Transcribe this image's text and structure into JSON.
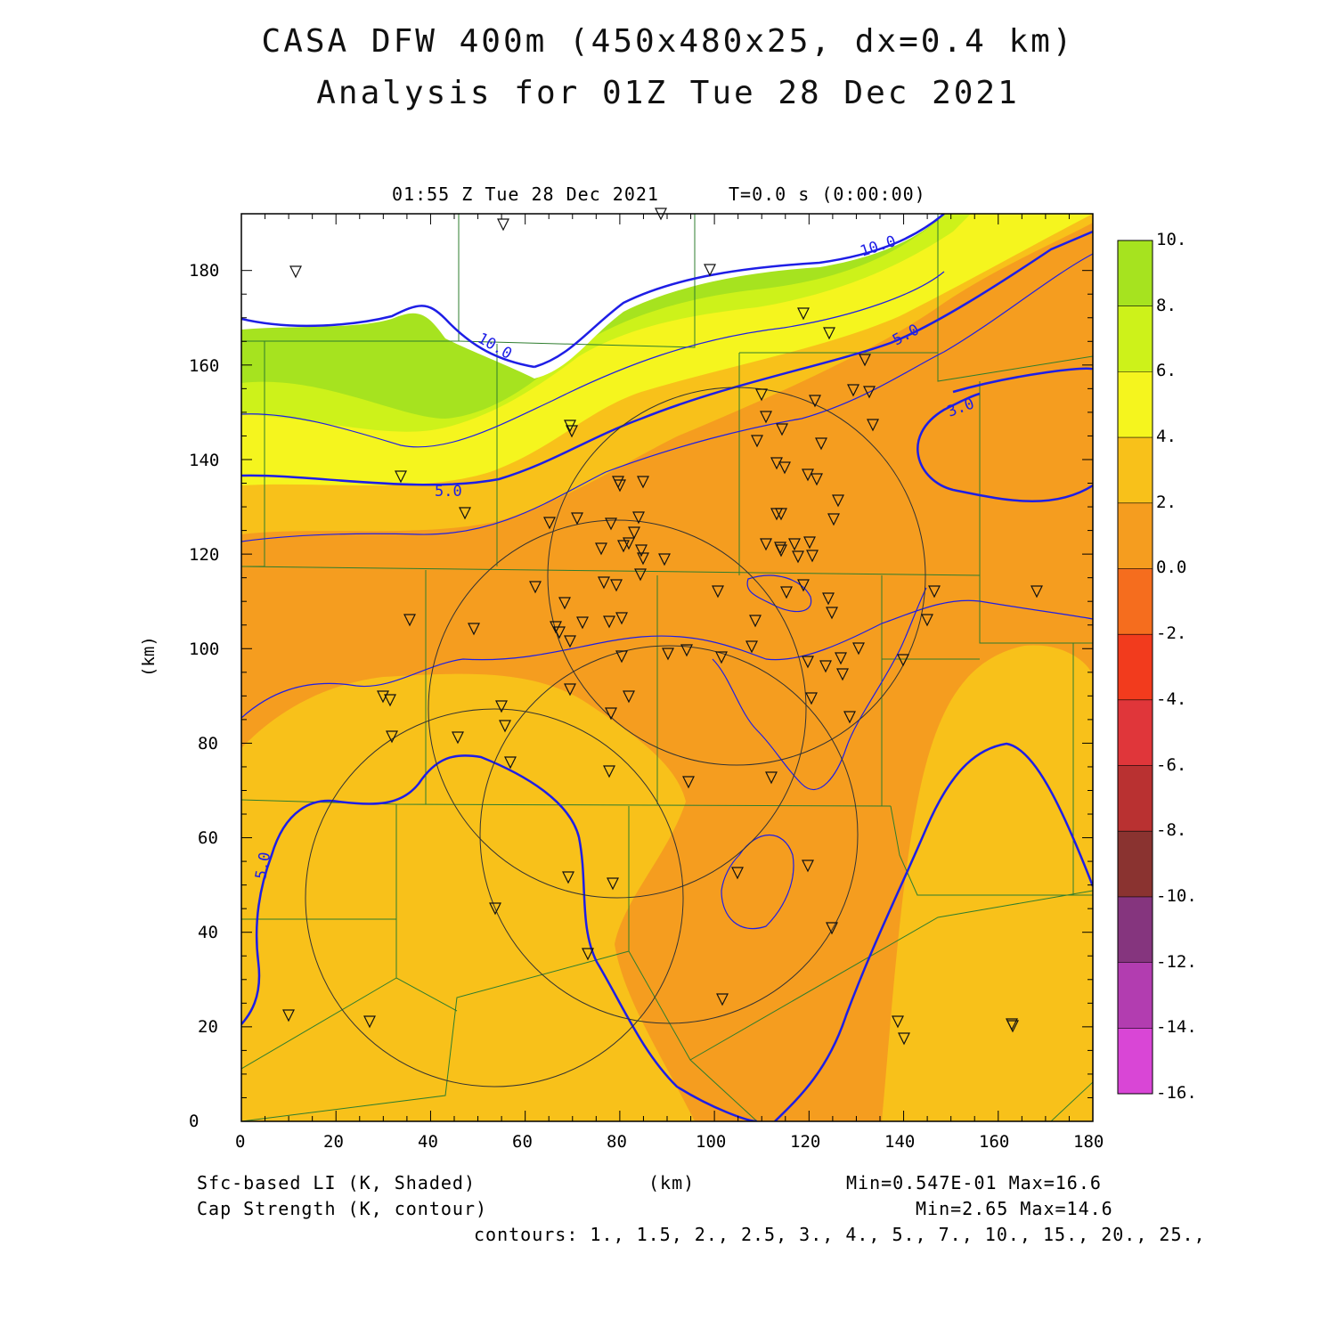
{
  "title_line1": "CASA DFW 400m (450x480x25, dx=0.4 km)",
  "title_line2": "Analysis for 01Z Tue 28 Dec 2021",
  "valid_time": "01:55 Z Tue 28 Dec 2021",
  "time_step": "T=0.0 s (0:00:00)",
  "x_axis": {
    "label": "(km)",
    "ticks": [
      "0",
      "20",
      "40",
      "60",
      "80",
      "100",
      "120",
      "140",
      "160",
      "180"
    ]
  },
  "y_axis": {
    "label": "(km)",
    "ticks": [
      "0",
      "20",
      "40",
      "60",
      "80",
      "100",
      "120",
      "140",
      "160",
      "180"
    ]
  },
  "colorbar": {
    "labels": [
      "10.",
      "8.",
      "6.",
      "4.",
      "2.",
      "0.0",
      "-2.",
      "-4.",
      "-6.",
      "-8.",
      "-10.",
      "-12.",
      "-14.",
      "-16."
    ],
    "colors": [
      "#a6e31f",
      "#cdf21a",
      "#f5f51e",
      "#f8c11a",
      "#f59d1f",
      "#f56d1e",
      "#f23b1d",
      "#e0363a",
      "#b93131",
      "#8a3330",
      "#85357e",
      "#b23db0",
      "#d946d6"
    ]
  },
  "contour_labels": [
    "10.0",
    "10.0",
    "5.0",
    "5.0",
    "5.0",
    "3.0"
  ],
  "legend": {
    "shaded": "Sfc-based LI (K, Shaded)",
    "contour": "Cap Strength (K, contour)",
    "xunit": "(km)",
    "minmax_shaded": "Min=0.547E-01 Max=16.6",
    "minmax_contour": "Min=2.65 Max=14.6",
    "contours": "contours: 1., 1.5, 2., 2.5, 3., 4., 5., 7., 10., 15., 20., 25.,"
  }
}
